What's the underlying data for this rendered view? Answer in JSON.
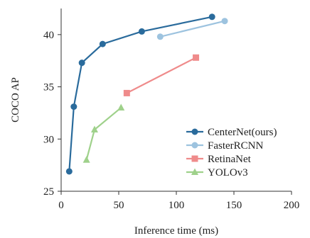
{
  "chart_data": {
    "type": "line",
    "title": "",
    "xlabel": "Inference time (ms)",
    "ylabel": "COCO AP",
    "xlim": [
      0,
      200
    ],
    "ylim": [
      25,
      42.5
    ],
    "xticks": [
      0,
      50,
      100,
      150,
      200
    ],
    "yticks": [
      25,
      30,
      35,
      40
    ],
    "grid": false,
    "legend_position": "bottom-right",
    "series": [
      {
        "name": "CenterNet(ours)",
        "color": "#2a6b9c",
        "marker": "circle",
        "points": [
          [
            7,
            26.9
          ],
          [
            11,
            33.1
          ],
          [
            18,
            37.3
          ],
          [
            36,
            39.1
          ],
          [
            70,
            40.3
          ],
          [
            131,
            41.7
          ]
        ]
      },
      {
        "name": "FasterRCNN",
        "color": "#9dc3df",
        "marker": "circle",
        "points": [
          [
            86,
            39.8
          ],
          [
            142,
            41.3
          ]
        ]
      },
      {
        "name": "RetinaNet",
        "color": "#ef8b8b",
        "marker": "square",
        "points": [
          [
            57,
            34.4
          ],
          [
            117,
            37.8
          ]
        ]
      },
      {
        "name": "YOLOv3",
        "color": "#9fd18b",
        "marker": "triangle",
        "points": [
          [
            22,
            28.0
          ],
          [
            29,
            30.9
          ],
          [
            52,
            33.0
          ]
        ]
      }
    ]
  }
}
